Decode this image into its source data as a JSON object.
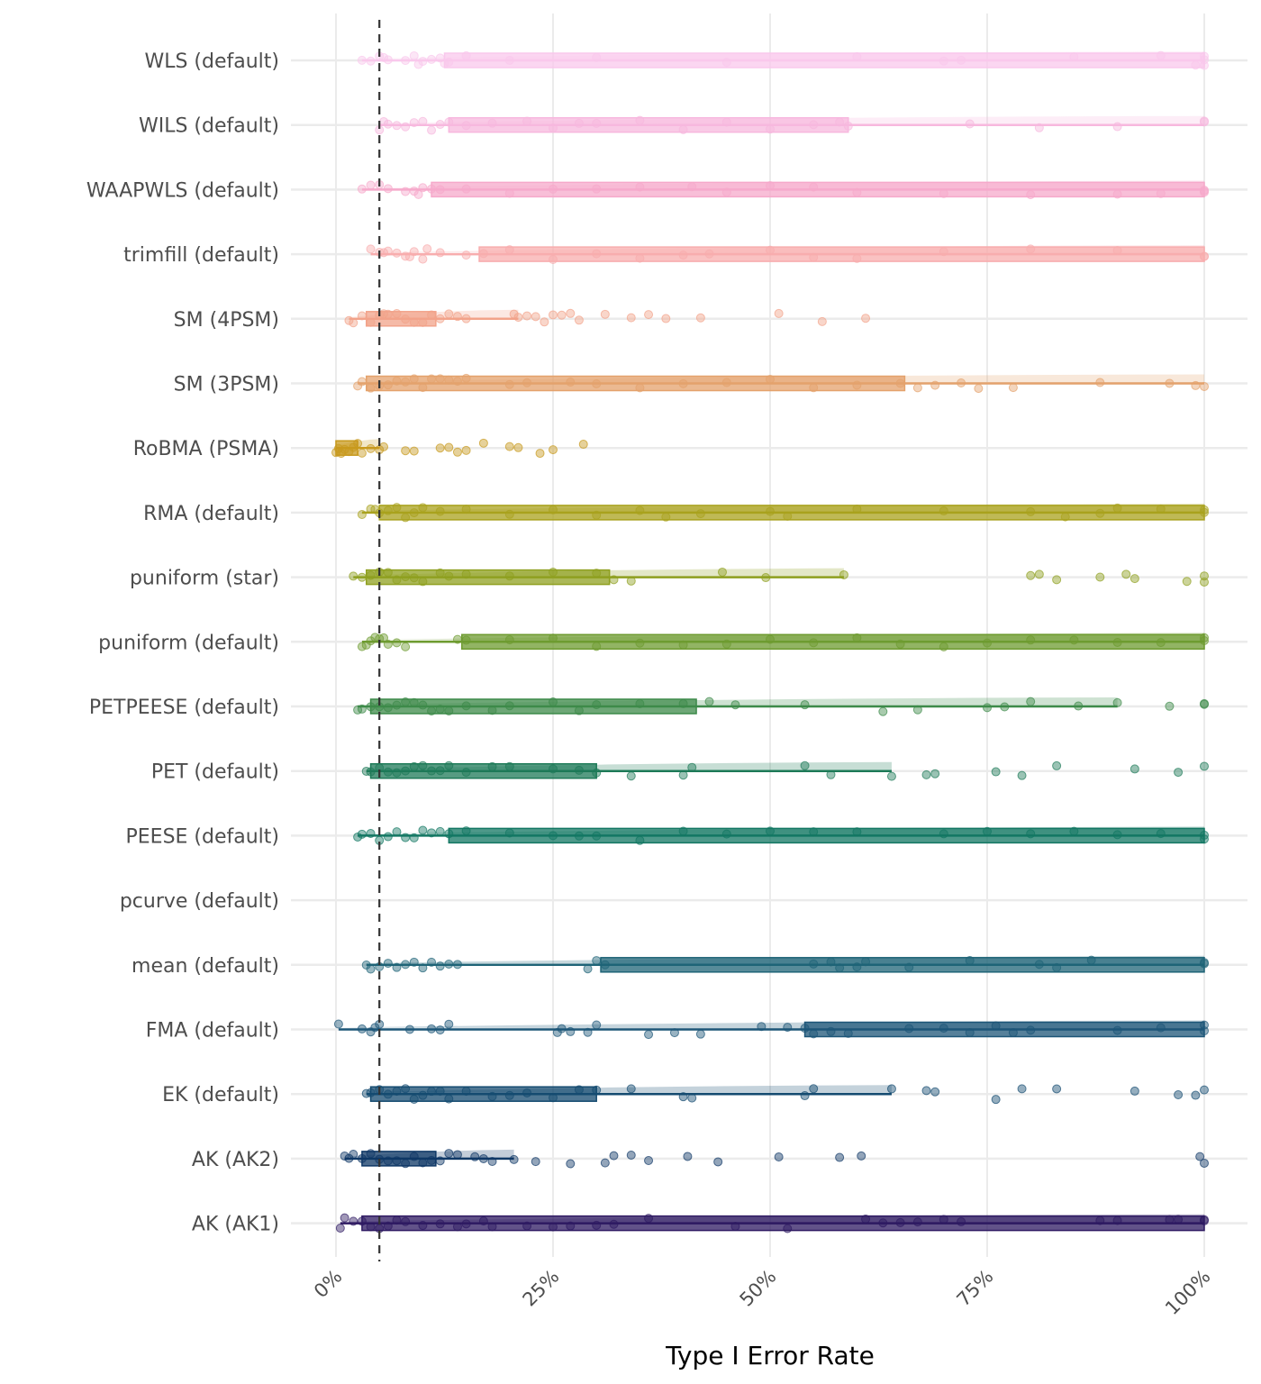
{
  "chart_data": {
    "type": "boxplot-jitter",
    "title": "",
    "xlabel": "Type I Error Rate",
    "ylabel": "",
    "xlim": [
      0,
      100
    ],
    "x_unit": "%",
    "x_ticks": [
      0,
      25,
      50,
      75,
      100
    ],
    "x_tick_labels": [
      "0%",
      "25%",
      "50%",
      "75%",
      "100%"
    ],
    "grid": true,
    "legend": "none",
    "reference_line": {
      "value": 5,
      "style": "dashed",
      "color": "#333333"
    },
    "categories": [
      "WLS (default)",
      "WILS (default)",
      "WAAPWLS (default)",
      "trimfill (default)",
      "SM (4PSM)",
      "SM (3PSM)",
      "RoBMA (PSMA)",
      "RMA (default)",
      "puniform (star)",
      "puniform (default)",
      "PETPEESE (default)",
      "PET (default)",
      "PEESE (default)",
      "pcurve (default)",
      "mean (default)",
      "FMA (default)",
      "EK (default)",
      "AK (AK2)",
      "AK (AK1)"
    ],
    "series": [
      {
        "name": "WLS (default)",
        "color": "#F9C8EC",
        "min": 3,
        "q1": 12.5,
        "median": 60,
        "q3": 100,
        "max": 100,
        "points": [
          3,
          4,
          5,
          5.5,
          6,
          8,
          9,
          9.5,
          10,
          11,
          12,
          12.5,
          13,
          15,
          20,
          30,
          45,
          60,
          70,
          72,
          85,
          95,
          99,
          100,
          100,
          100
        ]
      },
      {
        "name": "WILS (default)",
        "color": "#F7B8DE",
        "min": 5,
        "q1": 13,
        "median": 30,
        "q3": 59,
        "max": 100,
        "points": [
          5,
          5.5,
          6,
          7,
          8,
          9,
          10,
          11,
          12,
          13,
          15,
          18,
          22,
          25,
          28,
          30,
          35,
          40,
          45,
          50,
          55,
          58,
          59,
          73,
          81,
          90,
          100,
          100
        ]
      },
      {
        "name": "WAAPWLS (default)",
        "color": "#F6A9CB",
        "min": 3,
        "q1": 11,
        "median": 55,
        "q3": 100,
        "max": 100,
        "points": [
          3,
          4,
          5,
          6,
          8,
          9,
          9.5,
          10,
          11,
          12,
          15,
          20,
          25,
          30,
          35,
          41,
          45,
          50,
          55,
          60,
          70,
          80,
          90,
          95,
          100,
          100,
          100
        ]
      },
      {
        "name": "trimfill (default)",
        "color": "#F8ADAE",
        "min": 4,
        "q1": 16.5,
        "median": 70,
        "q3": 100,
        "max": 100,
        "points": [
          4,
          5,
          5.5,
          6,
          7,
          8,
          8.5,
          9,
          10,
          10.5,
          12,
          15,
          17,
          20,
          25,
          30,
          35,
          40,
          43,
          50,
          55,
          60,
          70,
          80,
          90,
          100,
          100
        ]
      },
      {
        "name": "SM (4PSM)",
        "color": "#F2A38A",
        "min": 1.5,
        "q1": 3.5,
        "median": 6,
        "q3": 11.5,
        "max": 21,
        "points": [
          1.5,
          2,
          3,
          4,
          5,
          5.5,
          6,
          7,
          8,
          9,
          10,
          11,
          12,
          13,
          14,
          15,
          20.5,
          21,
          22,
          23,
          24,
          25,
          26,
          27,
          28,
          31,
          34,
          36,
          38,
          42,
          51,
          56,
          61
        ]
      },
      {
        "name": "SM (3PSM)",
        "color": "#E4A26C",
        "min": 2.5,
        "q1": 3.5,
        "median": 10,
        "q3": 65.5,
        "max": 100,
        "points": [
          2.5,
          3,
          4,
          5,
          6,
          7,
          8,
          9,
          10,
          11,
          12,
          13,
          14,
          15,
          20,
          22,
          27,
          30,
          35,
          40,
          45,
          50,
          55,
          60,
          65,
          67,
          69,
          72,
          74,
          78,
          88,
          96,
          99,
          100
        ]
      },
      {
        "name": "RoBMA (PSMA)",
        "color": "#C89A1E",
        "min": 0,
        "q1": 0,
        "median": 0.5,
        "q3": 2.5,
        "max": 5,
        "points": [
          0,
          0.3,
          0.6,
          1,
          1.5,
          2,
          2.5,
          3,
          4,
          5,
          5.5,
          8,
          9,
          12,
          13,
          14,
          15,
          17,
          20,
          21,
          23.5,
          25,
          28.5
        ]
      },
      {
        "name": "RMA (default)",
        "color": "#A9A21E",
        "min": 3,
        "q1": 5,
        "median": 55,
        "q3": 100,
        "max": 100,
        "points": [
          3,
          4,
          4.5,
          5,
          6,
          7,
          8,
          9,
          10,
          12,
          15,
          20,
          25,
          30,
          35,
          38,
          42,
          50,
          52,
          60,
          70,
          80,
          84,
          88,
          90,
          95,
          100,
          100
        ]
      },
      {
        "name": "puniform (star)",
        "color": "#8FA020",
        "min": 2,
        "q1": 3.5,
        "median": 7,
        "q3": 31.5,
        "max": 58.5,
        "points": [
          2,
          3,
          4,
          5,
          6,
          7,
          8,
          9,
          10,
          12,
          13,
          15,
          20,
          25,
          30,
          32,
          34,
          44.5,
          49.5,
          58.5,
          80,
          81,
          83,
          88,
          91,
          92,
          98,
          100,
          100
        ]
      },
      {
        "name": "puniform (default)",
        "color": "#6E9B30",
        "min": 3,
        "q1": 14.5,
        "median": 55,
        "q3": 100,
        "max": 100,
        "points": [
          3,
          3.5,
          4,
          4.5,
          5,
          5.5,
          6,
          7,
          8,
          14,
          15,
          20,
          25,
          30,
          35,
          40,
          45,
          50,
          55,
          60,
          65,
          70,
          75,
          80,
          85,
          90,
          95,
          100,
          100
        ]
      },
      {
        "name": "PETPEESE (default)",
        "color": "#3D8A4A",
        "min": 2.5,
        "q1": 4,
        "median": 10,
        "q3": 41.5,
        "max": 90,
        "points": [
          2.5,
          3,
          4,
          5,
          6,
          7,
          8,
          9,
          10,
          11,
          12,
          13,
          15,
          18,
          20,
          25,
          28,
          30,
          35,
          40,
          43,
          46,
          54,
          63,
          67,
          75,
          77,
          80,
          85.5,
          90,
          96,
          100,
          100
        ]
      },
      {
        "name": "PET (default)",
        "color": "#1E7A58",
        "min": 3.5,
        "q1": 4,
        "median": 8,
        "q3": 30,
        "max": 64,
        "points": [
          3.5,
          4,
          5,
          6,
          7,
          8,
          9,
          10,
          11,
          12,
          13,
          15,
          18,
          20,
          25,
          28,
          30,
          34,
          40,
          41,
          54,
          57,
          64,
          68,
          69,
          76,
          79,
          83,
          92,
          97,
          100
        ]
      },
      {
        "name": "PEESE (default)",
        "color": "#137763",
        "min": 2.5,
        "q1": 13,
        "median": 55,
        "q3": 100,
        "max": 100,
        "points": [
          2.5,
          3,
          4,
          5,
          6,
          7,
          8,
          9,
          10,
          11,
          12,
          13,
          15,
          20,
          25,
          28,
          30,
          35,
          40,
          45,
          50,
          55,
          60,
          70,
          75,
          80,
          85,
          90,
          95,
          100,
          100
        ]
      },
      {
        "name": "pcurve (default)",
        "color": "#0F6A6E",
        "min": null,
        "q1": null,
        "median": null,
        "q3": null,
        "max": null,
        "points": []
      },
      {
        "name": "mean (default)",
        "color": "#1F6477",
        "min": 3.5,
        "q1": 30.5,
        "median": 75,
        "q3": 100,
        "max": 100,
        "points": [
          3.5,
          4,
          5,
          6,
          7,
          8,
          9,
          10,
          11,
          12,
          13,
          14,
          29,
          30,
          31,
          55,
          57,
          58,
          60,
          61,
          66,
          73,
          81,
          83,
          87,
          100,
          100
        ]
      },
      {
        "name": "FMA (default)",
        "color": "#1D5678",
        "min": 0.3,
        "q1": 54,
        "median": 80,
        "q3": 100,
        "max": 100,
        "points": [
          0.3,
          3,
          4,
          4.5,
          5,
          8.5,
          11,
          12,
          13,
          25.5,
          26,
          27,
          29,
          30,
          36,
          39,
          42,
          49,
          52,
          54,
          55,
          57,
          59,
          66,
          70,
          73,
          76,
          78,
          80,
          90,
          95,
          100,
          100
        ]
      },
      {
        "name": "EK (default)",
        "color": "#154B70",
        "min": 3.5,
        "q1": 4,
        "median": 8,
        "q3": 30,
        "max": 64,
        "points": [
          3.5,
          4,
          5,
          6,
          7,
          8,
          9,
          10,
          11,
          12,
          13,
          15,
          18,
          20,
          22,
          25,
          28,
          30,
          34,
          40,
          41,
          54,
          55,
          64,
          68,
          69,
          76,
          79,
          83,
          92,
          97,
          99,
          100
        ]
      },
      {
        "name": "AK (AK2)",
        "color": "#0F3866",
        "min": 1,
        "q1": 3,
        "median": 6,
        "q3": 11.5,
        "max": 20.5,
        "points": [
          1,
          1.5,
          2,
          3,
          4,
          5,
          6,
          7,
          8,
          9,
          10,
          11,
          12,
          13,
          14,
          16,
          17,
          18,
          20.5,
          23,
          27,
          31,
          32,
          34,
          36,
          40.5,
          44,
          51,
          58,
          60.5,
          99.5,
          100
        ]
      },
      {
        "name": "AK (AK1)",
        "color": "#2E1A62",
        "min": 0.5,
        "q1": 3,
        "median": 50,
        "q3": 100,
        "max": 100,
        "points": [
          0.5,
          1,
          2,
          3,
          4,
          5,
          6,
          7,
          8,
          10,
          12,
          14,
          15,
          17,
          18,
          22,
          25,
          27,
          30,
          32,
          36,
          46,
          52,
          61,
          63,
          65,
          67,
          70,
          72,
          88,
          90,
          96,
          97,
          100,
          100
        ]
      }
    ]
  }
}
